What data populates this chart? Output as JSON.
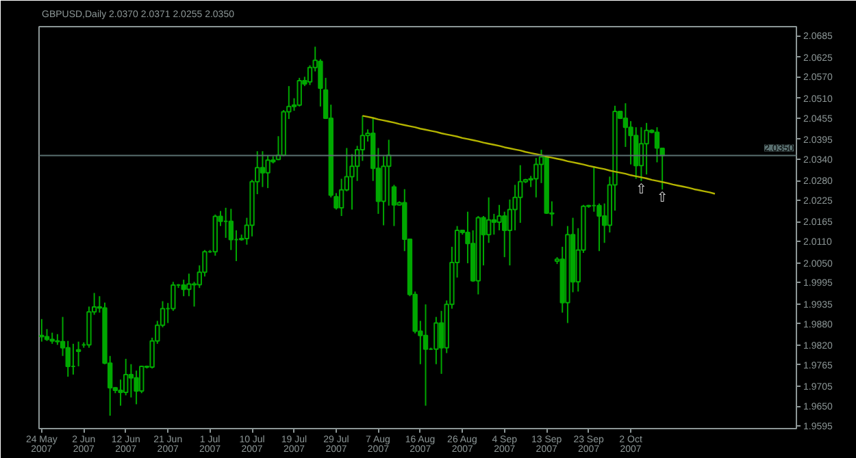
{
  "chart_data": {
    "type": "candlestick",
    "title": "GBPUSD,Daily  2.0370 2.0371 2.0255 2.0350",
    "categories": [
      "24 May 2007",
      null,
      null,
      null,
      null,
      null,
      null,
      null,
      "2 Jun 2007",
      null,
      null,
      null,
      null,
      null,
      null,
      null,
      "12 Jun 2007",
      null,
      null,
      null,
      null,
      null,
      null,
      null,
      "21 Jun 2007",
      null,
      null,
      null,
      null,
      null,
      null,
      null,
      "1 Jul 2007",
      null,
      null,
      null,
      null,
      null,
      null,
      null,
      "10 Jul 2007",
      null,
      null,
      null,
      null,
      null,
      null,
      null,
      "19 Jul 2007",
      null,
      null,
      null,
      null,
      null,
      null,
      null,
      "29 Jul 2007",
      null,
      null,
      null,
      null,
      null,
      null,
      null,
      "7 Aug 2007",
      null,
      null,
      null,
      null,
      null,
      null,
      null,
      "16 Aug 2007",
      null,
      null,
      null,
      null,
      null,
      null,
      null,
      "26 Aug 2007",
      null,
      null,
      null,
      null,
      null,
      null,
      null,
      "4 Sep 2007",
      null,
      null,
      null,
      null,
      null,
      null,
      null,
      "13 Sep 2007",
      null,
      null,
      null,
      null,
      null,
      null,
      null,
      "23 Sep 2007",
      null,
      null,
      null,
      null,
      null,
      null,
      null,
      "2 Oct 2007",
      null,
      null,
      null,
      null,
      null,
      null,
      null,
      null,
      null,
      null,
      null,
      null,
      null,
      null,
      null,
      null,
      null,
      null,
      null,
      null,
      null,
      null,
      null,
      null,
      null,
      null,
      null,
      null,
      null,
      null,
      null
    ],
    "series": [
      {
        "color": "#00a800",
        "ohlc": [
          [
            1.9847,
            1.9893,
            1.983,
            1.9844
          ],
          [
            1.9844,
            1.9865,
            1.9832,
            1.9836
          ],
          [
            1.9836,
            1.9855,
            1.9824,
            1.9832
          ],
          [
            1.9832,
            1.9851,
            1.9821,
            1.983
          ],
          [
            1.983,
            1.9899,
            1.979,
            1.9813
          ],
          [
            1.9813,
            1.9832,
            1.9732,
            1.9761
          ],
          [
            1.9761,
            1.9824,
            1.9738,
            1.9761
          ],
          [
            1.9807,
            1.983,
            1.9761,
            1.9803
          ],
          [
            1.9821,
            1.9828,
            1.9813,
            1.9821
          ],
          [
            1.9821,
            1.9928,
            1.9813,
            1.9913
          ],
          [
            1.9913,
            1.9966,
            1.9905,
            1.9927
          ],
          [
            1.9927,
            1.9957,
            1.9911,
            1.9924
          ],
          [
            1.9924,
            1.9939,
            1.9767,
            1.977
          ],
          [
            1.977,
            1.979,
            1.9623,
            1.9701
          ],
          [
            1.9701,
            1.9703,
            1.9686,
            1.9694
          ],
          [
            1.9694,
            1.9724,
            1.9651,
            1.9688
          ],
          [
            1.9688,
            1.9782,
            1.968,
            1.9738
          ],
          [
            1.9738,
            1.9767,
            1.9674,
            1.9729
          ],
          [
            1.9729,
            1.9749,
            1.9655,
            1.9692
          ],
          [
            1.9692,
            1.9763,
            1.9686,
            1.9761
          ],
          [
            1.9761,
            1.9763,
            1.9755,
            1.9759
          ],
          [
            1.9759,
            1.9841,
            1.9755,
            1.9832
          ],
          [
            1.9832,
            1.9888,
            1.9824,
            1.9876
          ],
          [
            1.9876,
            1.9943,
            1.987,
            1.9922
          ],
          [
            1.9922,
            1.9938,
            1.9882,
            1.9922
          ],
          [
            1.9922,
            1.9997,
            1.9916,
            1.9988
          ],
          [
            1.9988,
            1.9991,
            1.998,
            1.9988
          ],
          [
            1.9988,
            2.0003,
            1.9957,
            1.9976
          ],
          [
            1.9976,
            2.002,
            1.9957,
            1.9991
          ],
          [
            1.9991,
            1.9997,
            1.9928,
            1.9989
          ],
          [
            1.9989,
            2.0043,
            1.998,
            2.0024
          ],
          [
            2.0024,
            2.0086,
            2.0012,
            2.0081
          ],
          [
            2.0081,
            2.0086,
            2.0078,
            2.0081
          ],
          [
            2.0081,
            2.0185,
            2.007,
            2.018
          ],
          [
            2.018,
            2.0195,
            2.0153,
            2.0166
          ],
          [
            2.0166,
            2.0204,
            2.012,
            2.0166
          ],
          [
            2.0166,
            2.0201,
            2.0086,
            2.0115
          ],
          [
            2.0115,
            2.0141,
            2.0055,
            2.0115
          ],
          [
            2.0115,
            2.0129,
            2.0112,
            2.0118
          ],
          [
            2.0118,
            2.0176,
            2.0101,
            2.0155
          ],
          [
            2.0155,
            2.0282,
            2.0124,
            2.0277
          ],
          [
            2.0277,
            2.0362,
            2.0242,
            2.0316
          ],
          [
            2.0316,
            2.0362,
            2.0262,
            2.0302
          ],
          [
            2.0302,
            2.0351,
            2.0259,
            2.0337
          ],
          [
            2.0337,
            2.0348,
            2.0328,
            2.0333
          ],
          [
            2.0339,
            2.0404,
            2.0337,
            2.0351
          ],
          [
            2.0351,
            2.0477,
            2.0348,
            2.0472
          ],
          [
            2.0472,
            2.0544,
            2.0452,
            2.0487
          ],
          [
            2.0487,
            2.051,
            2.0475,
            2.0491
          ],
          [
            2.0491,
            2.0567,
            2.0487,
            2.0559
          ],
          [
            2.0559,
            2.057,
            2.0544,
            2.055
          ],
          [
            2.0556,
            2.0602,
            2.0547,
            2.0596
          ],
          [
            2.0596,
            2.0654,
            2.0585,
            2.0616
          ],
          [
            2.0613,
            2.0619,
            2.0487,
            2.0538
          ],
          [
            2.0533,
            2.0567,
            2.0452,
            2.0454
          ],
          [
            2.0454,
            2.0492,
            2.0233,
            2.0239
          ],
          [
            2.0235,
            2.0245,
            2.0199,
            2.0204
          ],
          [
            2.0204,
            2.0285,
            2.0181,
            2.0254
          ],
          [
            2.0254,
            2.0371,
            2.025,
            2.0291
          ],
          [
            2.0291,
            2.0354,
            2.0199,
            2.032
          ],
          [
            2.032,
            2.0377,
            2.0279,
            2.0366
          ],
          [
            2.0366,
            2.0461,
            2.0335,
            2.0406
          ],
          [
            2.0406,
            2.0423,
            2.0389,
            2.0412
          ],
          [
            2.0412,
            2.0454,
            2.0279,
            2.0314
          ],
          [
            2.0314,
            2.0371,
            2.0187,
            2.0222
          ],
          [
            2.0222,
            2.0348,
            2.0155,
            2.032
          ],
          [
            2.032,
            2.0394,
            2.021,
            2.0351
          ],
          [
            2.0262,
            2.0268,
            2.0153,
            2.0212
          ],
          [
            2.0212,
            2.0222,
            2.021,
            2.0218
          ],
          [
            2.0218,
            2.0256,
            2.0083,
            2.0116
          ],
          [
            2.0116,
            2.0118,
            1.9957,
            1.9962
          ],
          [
            1.9962,
            1.997,
            1.9853,
            1.9859
          ],
          [
            1.9859,
            1.9888,
            1.9767,
            1.9847
          ],
          [
            1.9847,
            1.9934,
            1.9651,
            1.9809
          ],
          [
            1.9809,
            1.9813,
            1.9807,
            1.9809
          ],
          [
            1.9809,
            1.9899,
            1.9767,
            1.9882
          ],
          [
            1.9882,
            1.9916,
            1.974,
            1.9813
          ],
          [
            1.9813,
            1.9945,
            1.9798,
            1.9934
          ],
          [
            1.9934,
            2.0095,
            1.9922,
            2.0051
          ],
          [
            2.0051,
            2.0153,
            2.0009,
            2.0141
          ],
          [
            2.0141,
            2.0141,
            2.0129,
            2.0135
          ],
          [
            2.0135,
            2.0193,
            2.0049,
            2.0104
          ],
          [
            2.0104,
            2.0141,
            1.9997,
            2.0
          ],
          [
            2.0,
            2.0181,
            1.9962,
            2.0176
          ],
          [
            2.0176,
            2.0181,
            2.0043,
            2.0129
          ],
          [
            2.0129,
            2.0233,
            2.0106,
            2.017
          ],
          [
            2.017,
            2.0187,
            2.0129,
            2.0164
          ],
          [
            2.0164,
            2.0212,
            2.0141,
            2.0181
          ],
          [
            2.0181,
            2.0193,
            2.0066,
            2.0141
          ],
          [
            2.0141,
            2.0227,
            2.0043,
            2.0199
          ],
          [
            2.0199,
            2.0268,
            2.0141,
            2.0233
          ],
          [
            2.0233,
            2.0323,
            2.0162,
            2.0277
          ],
          [
            2.0277,
            2.0285,
            2.0273,
            2.0282
          ],
          [
            2.0282,
            2.0293,
            2.0262,
            2.0285
          ],
          [
            2.0285,
            2.0343,
            2.0233,
            2.0325
          ],
          [
            2.0325,
            2.0366,
            2.0273,
            2.0346
          ],
          [
            2.0346,
            2.0346,
            2.0187,
            2.0189
          ],
          [
            2.0189,
            2.0222,
            2.0153,
            2.0187
          ],
          [
            2.0055,
            2.0066,
            2.0047,
            2.006
          ],
          [
            2.006,
            2.0095,
            1.9911,
            1.9939
          ],
          [
            1.9939,
            2.0153,
            1.9882,
            2.0129
          ],
          [
            2.0129,
            2.0176,
            1.9968,
            1.9997
          ],
          [
            1.9997,
            2.0147,
            1.997,
            2.0086
          ],
          [
            2.0086,
            2.0212,
            2.0078,
            2.0208
          ],
          [
            2.0208,
            2.0212,
            2.0204,
            2.021
          ],
          [
            2.021,
            2.032,
            2.0193,
            2.021
          ],
          [
            2.021,
            2.0216,
            2.0083,
            2.0181
          ],
          [
            2.0181,
            2.0216,
            2.0106,
            2.0155
          ],
          [
            2.0155,
            2.0291,
            2.0135,
            2.0268
          ],
          [
            2.0268,
            2.0489,
            2.0196,
            2.0473
          ],
          [
            2.0473,
            2.0475,
            2.0452,
            2.0454
          ],
          [
            2.0454,
            2.0496,
            2.0374,
            2.0429
          ],
          [
            2.0429,
            2.0446,
            2.0325,
            2.0406
          ],
          [
            2.0406,
            2.0429,
            2.0285,
            2.0322
          ],
          [
            2.0322,
            2.0429,
            2.0279,
            2.0383
          ],
          [
            2.0383,
            2.0441,
            2.0297,
            2.042
          ],
          [
            2.042,
            2.0423,
            2.0412,
            2.0415
          ],
          [
            2.0415,
            2.0429,
            2.0331,
            2.0371
          ],
          [
            2.037,
            2.0371,
            2.0255,
            2.035
          ],
          null,
          null,
          null,
          null,
          null,
          null,
          null,
          null,
          null,
          null,
          null,
          null,
          null,
          null,
          null,
          null,
          null,
          null,
          null,
          null,
          null,
          null,
          null,
          null,
          null
        ],
        "value_labels": [
          null,
          null,
          null,
          null,
          null,
          null,
          null,
          null,
          null,
          null,
          null,
          null,
          null,
          null,
          null,
          null,
          null,
          null,
          null,
          null,
          null,
          null,
          null,
          null,
          null,
          null,
          null,
          null,
          null,
          null,
          null,
          null,
          null,
          null,
          null,
          null,
          null,
          null,
          null,
          null,
          null,
          null,
          null,
          null,
          null,
          null,
          null,
          null,
          null,
          null,
          null,
          null,
          null,
          null,
          null,
          null,
          null,
          null,
          null,
          null,
          null,
          null,
          null,
          null,
          null,
          null,
          null,
          null,
          null,
          null,
          null,
          null,
          null,
          null,
          null,
          null,
          null,
          null,
          null,
          null,
          null,
          null,
          null,
          null,
          null,
          null,
          null,
          null,
          null,
          null,
          null,
          null,
          null,
          null,
          null,
          null,
          null,
          null,
          null,
          null,
          null,
          null,
          null,
          null,
          null,
          null,
          null,
          null,
          null,
          null,
          null,
          null,
          null,
          null,
          "⇧",
          null,
          null,
          null,
          "⇧",
          null,
          null,
          null,
          null,
          null,
          null,
          null,
          null,
          null,
          null,
          null,
          null,
          null,
          null,
          null,
          null,
          null,
          null,
          null,
          null,
          null,
          null,
          null,
          null,
          null
        ]
      },
      {
        "type": "line",
        "color": "#b4b400",
        "values": [
          null,
          null,
          null,
          null,
          null,
          null,
          null,
          null,
          null,
          null,
          null,
          null,
          null,
          null,
          null,
          null,
          null,
          null,
          null,
          null,
          null,
          null,
          null,
          null,
          null,
          null,
          null,
          null,
          null,
          null,
          null,
          null,
          null,
          null,
          null,
          null,
          null,
          null,
          null,
          null,
          null,
          null,
          null,
          null,
          null,
          null,
          null,
          null,
          null,
          null,
          null,
          null,
          null,
          null,
          null,
          null,
          null,
          null,
          null,
          null,
          null,
          2.0461,
          2.0458,
          2.0455,
          2.0451,
          2.0448,
          2.0445,
          2.0442,
          2.0438,
          2.0435,
          2.0432,
          2.0429,
          2.0425,
          2.0422,
          2.0419,
          2.0416,
          2.0412,
          2.0409,
          2.0406,
          2.0403,
          2.0399,
          2.0396,
          2.0393,
          2.039,
          2.0386,
          2.0383,
          2.038,
          2.0377,
          2.0373,
          2.037,
          2.0367,
          2.0364,
          2.036,
          2.0357,
          2.0354,
          2.0351,
          2.0347,
          2.0344,
          2.0341,
          2.0338,
          2.0334,
          2.0331,
          2.0328,
          2.0325,
          2.0321,
          2.0318,
          2.0315,
          2.0312,
          2.0308,
          2.0305,
          2.0302,
          2.0299,
          2.0295,
          2.0292,
          2.0289,
          2.0286,
          2.0282,
          2.0279,
          2.0276,
          2.0273,
          2.0269,
          2.0266,
          2.0263,
          2.026,
          2.0256,
          2.0253,
          2.025,
          2.0247,
          2.0243,
          null,
          null,
          null,
          null,
          null,
          null,
          null,
          null,
          null,
          null,
          null,
          null,
          null,
          null,
          null
        ]
      }
    ],
    "ylim": [
      1.9587,
      2.071
    ],
    "yticks": [
      2.0685,
      2.0625,
      {
        "value": 2.057,
        "label": "2.0570"
      },
      {
        "value": 2.051,
        "label": "2.0510"
      },
      2.0455,
      2.0395,
      {
        "value": 2.034,
        "label": "2.0340"
      },
      {
        "value": 2.028,
        "label": "2.0280"
      },
      2.0225,
      2.0165,
      {
        "value": 2.011,
        "label": "2.0110"
      },
      {
        "value": 2.005,
        "label": "2.0050"
      },
      1.9995,
      1.9935,
      {
        "value": 1.988,
        "label": "1.9880"
      },
      {
        "value": 1.982,
        "label": "1.9820"
      },
      1.9765,
      1.9705,
      {
        "value": 1.965,
        "label": "1.9650"
      },
      1.9595
    ],
    "ref_lines": [
      {
        "axis": "y",
        "value": 2.035,
        "label": "2.0350",
        "color": "#5a7070",
        "line_style": "solid"
      }
    ]
  }
}
